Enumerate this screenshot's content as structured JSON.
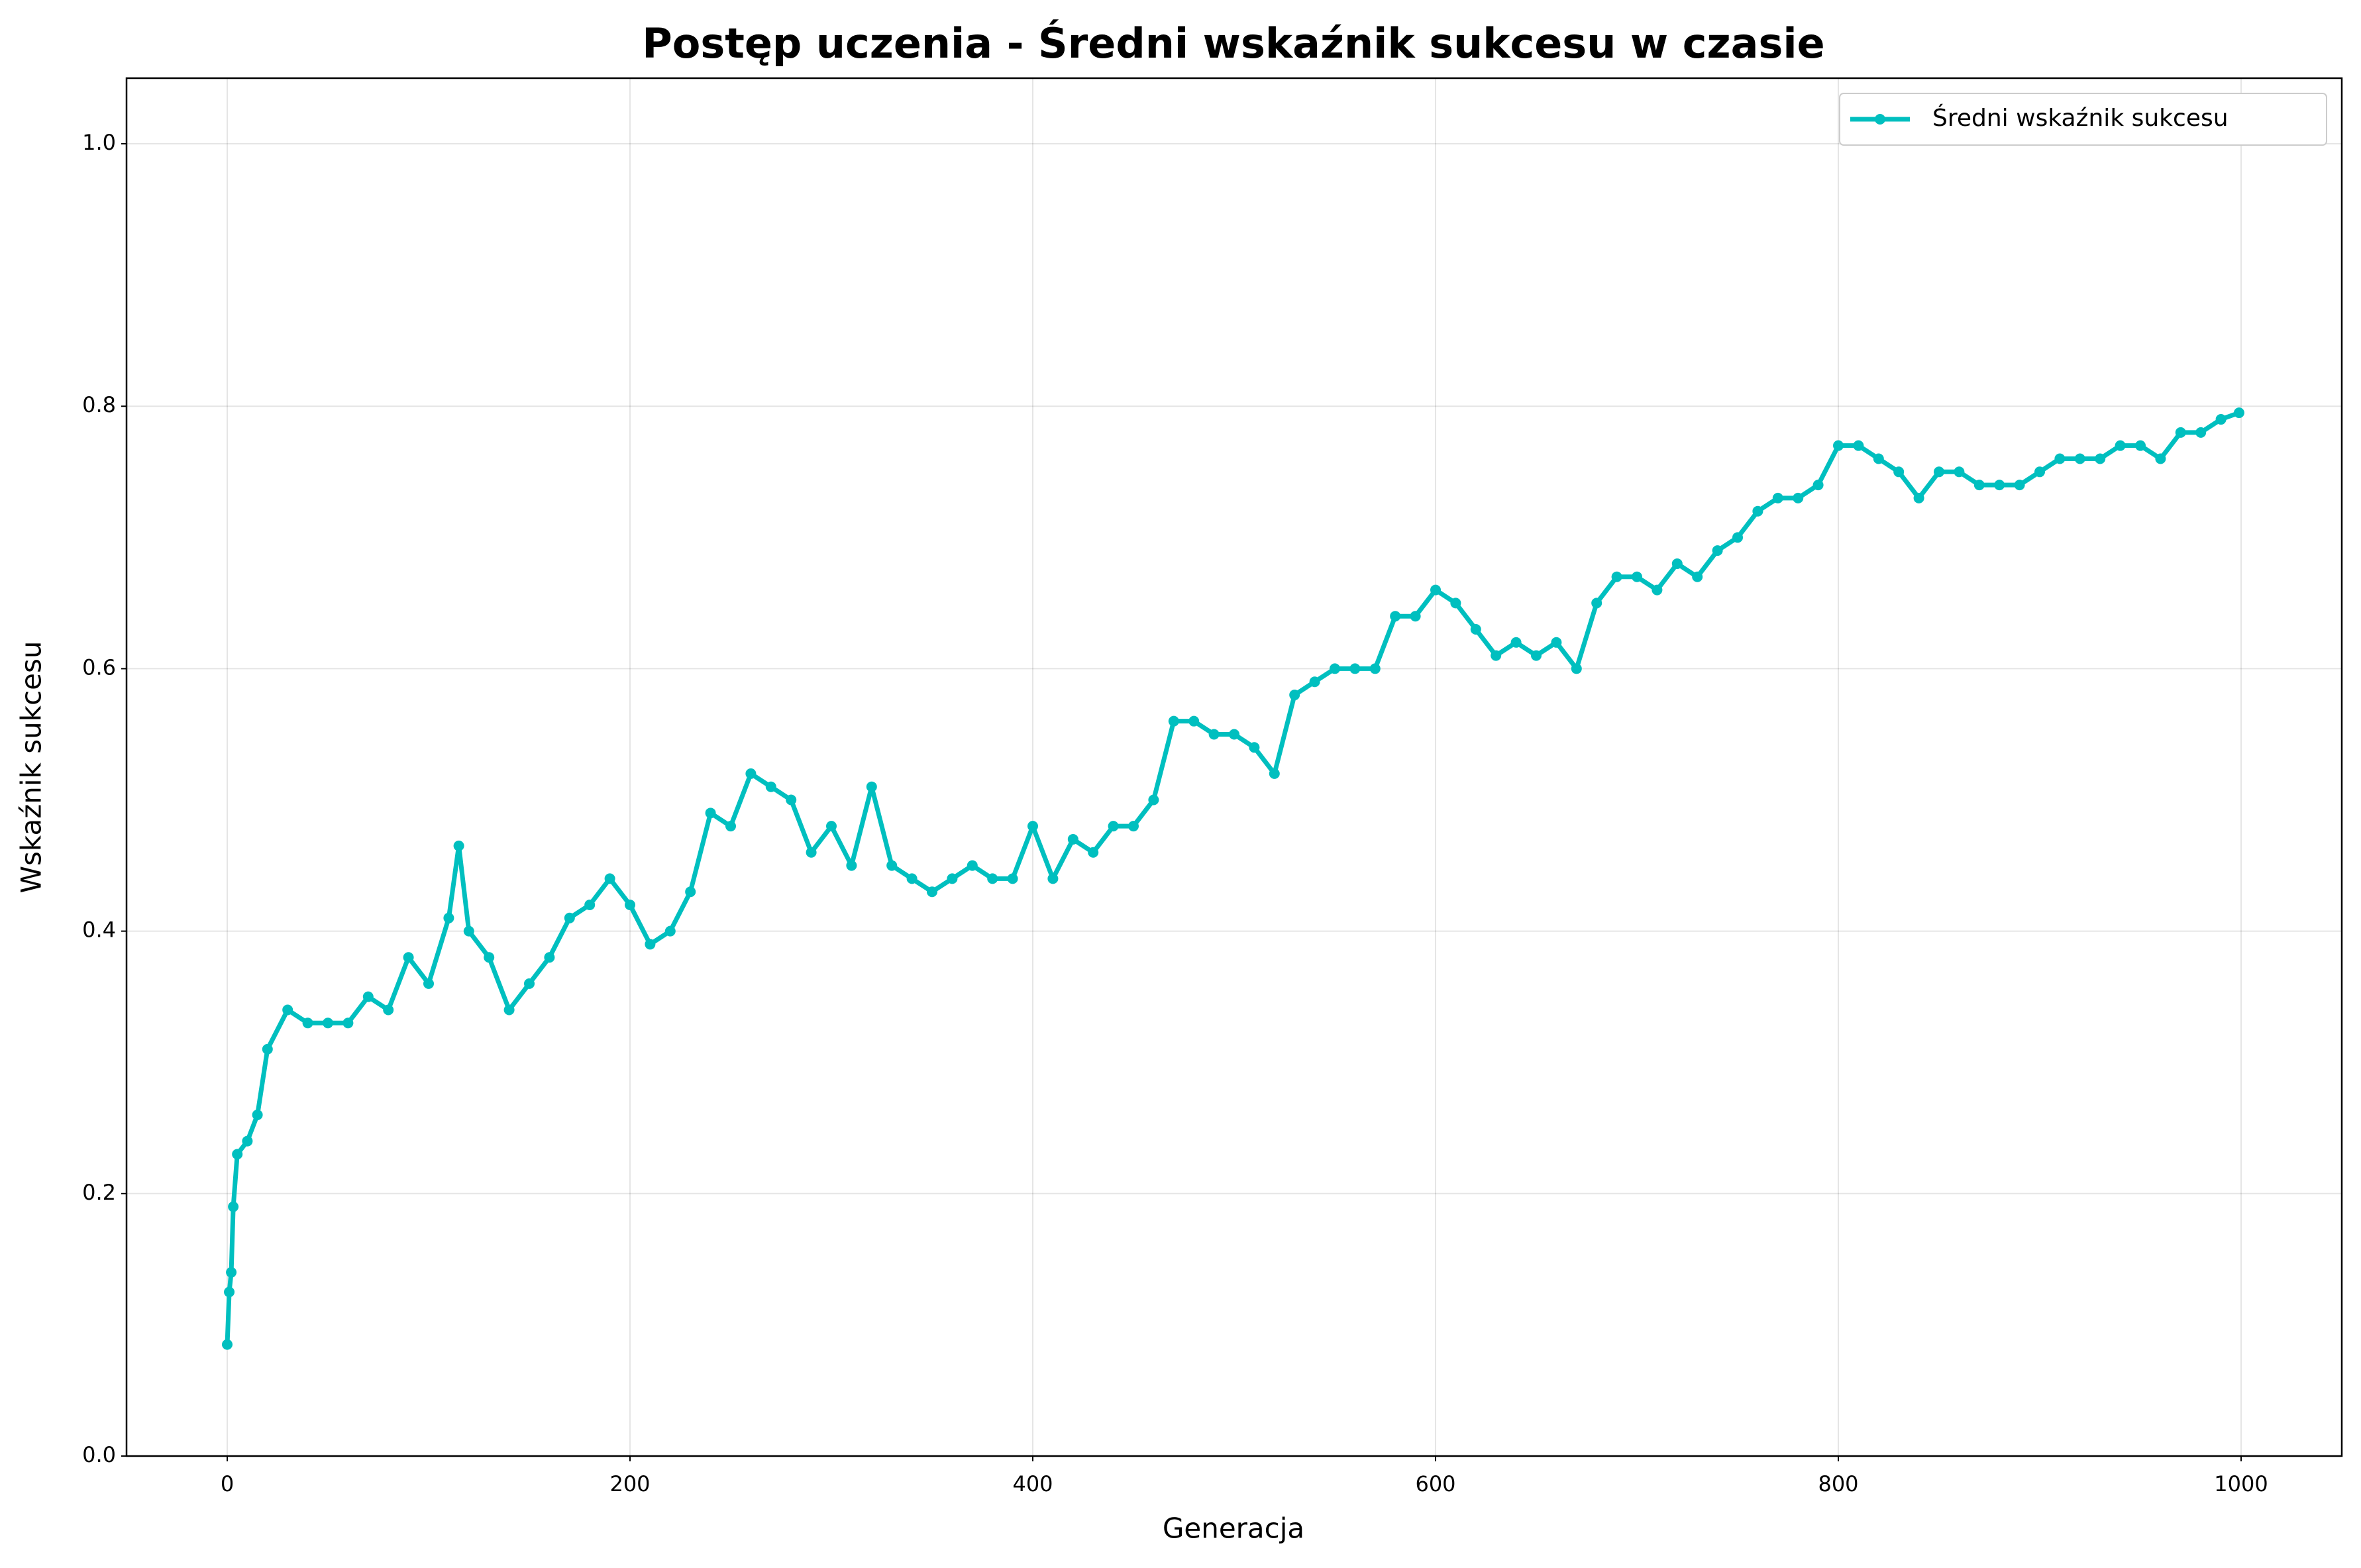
{
  "chart_data": {
    "type": "line",
    "title": "Postęp uczenia - Średni wskaźnik sukcesu w czasie",
    "x_label": "Generacja",
    "y_label": "Wskaźnik sukcesu",
    "x": [
      0,
      1,
      2,
      3,
      5,
      10,
      15,
      20,
      30,
      40,
      50,
      60,
      70,
      80,
      90,
      100,
      110,
      115,
      120,
      130,
      140,
      150,
      160,
      170,
      180,
      190,
      200,
      210,
      220,
      230,
      240,
      250,
      260,
      270,
      280,
      290,
      300,
      310,
      320,
      330,
      340,
      350,
      360,
      370,
      380,
      390,
      400,
      410,
      420,
      430,
      440,
      450,
      460,
      470,
      480,
      490,
      500,
      510,
      520,
      530,
      540,
      550,
      560,
      570,
      580,
      590,
      600,
      610,
      620,
      630,
      640,
      650,
      660,
      670,
      680,
      690,
      700,
      710,
      720,
      730,
      740,
      750,
      760,
      770,
      780,
      790,
      800,
      810,
      820,
      830,
      840,
      850,
      860,
      870,
      880,
      890,
      900,
      910,
      920,
      930,
      940,
      950,
      960,
      970,
      980,
      990,
      999
    ],
    "series": [
      {
        "name": "Średni wskaźnik sukcesu",
        "color": "#00bfbf",
        "values": [
          0.085,
          0.125,
          0.14,
          0.19,
          0.23,
          0.24,
          0.26,
          0.31,
          0.34,
          0.33,
          0.33,
          0.33,
          0.35,
          0.34,
          0.38,
          0.36,
          0.41,
          0.465,
          0.4,
          0.38,
          0.34,
          0.36,
          0.38,
          0.41,
          0.42,
          0.44,
          0.42,
          0.39,
          0.4,
          0.43,
          0.49,
          0.48,
          0.52,
          0.51,
          0.5,
          0.46,
          0.48,
          0.45,
          0.51,
          0.45,
          0.44,
          0.43,
          0.44,
          0.45,
          0.44,
          0.44,
          0.48,
          0.44,
          0.47,
          0.46,
          0.48,
          0.48,
          0.5,
          0.56,
          0.56,
          0.55,
          0.55,
          0.54,
          0.52,
          0.58,
          0.59,
          0.6,
          0.6,
          0.6,
          0.64,
          0.64,
          0.66,
          0.65,
          0.63,
          0.61,
          0.62,
          0.61,
          0.62,
          0.6,
          0.65,
          0.67,
          0.67,
          0.66,
          0.68,
          0.67,
          0.69,
          0.7,
          0.72,
          0.73,
          0.73,
          0.74,
          0.77,
          0.77,
          0.76,
          0.75,
          0.73,
          0.75,
          0.75,
          0.74,
          0.74,
          0.74,
          0.75,
          0.76,
          0.76,
          0.76,
          0.77,
          0.77,
          0.76,
          0.78,
          0.78,
          0.79,
          0.795
        ]
      }
    ],
    "xlim": [
      -50,
      1050
    ],
    "ylim": [
      0,
      1.05
    ],
    "xticks": [
      0,
      200,
      400,
      600,
      800,
      1000
    ],
    "yticks": [
      {
        "value": 0,
        "label": "0.0"
      },
      0.2,
      0.4,
      0.6,
      0.8,
      {
        "value": 1,
        "label": "1.0"
      }
    ],
    "grid": true,
    "legend": "upper right"
  }
}
